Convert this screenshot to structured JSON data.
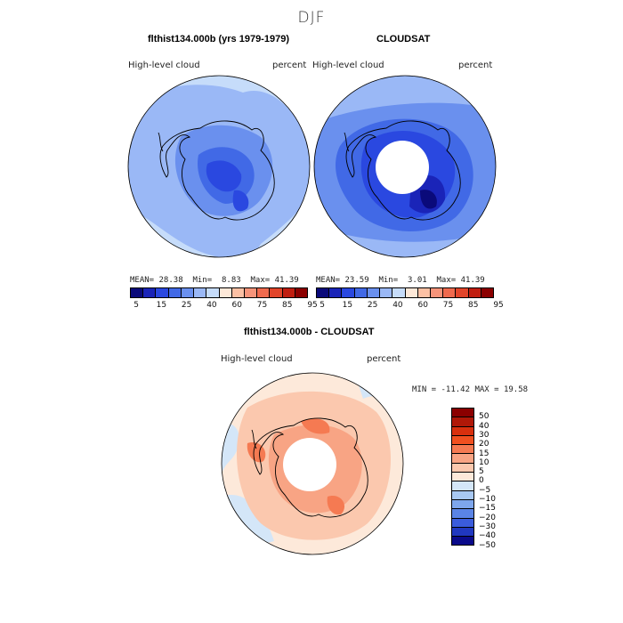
{
  "page": {
    "season": "DJF"
  },
  "panels": [
    {
      "title": "flthist134.000b (yrs 1979-1979)",
      "variable": "High-level cloud",
      "units": "percent",
      "stats": {
        "mean_label": "MEAN=",
        "mean": "28.38",
        "min_label": "Min=",
        "min": "8.83",
        "max_label": "Max=",
        "max": "41.39"
      }
    },
    {
      "title": "CLOUDSAT",
      "variable": "High-level cloud",
      "units": "percent",
      "stats": {
        "mean_label": "MEAN=",
        "mean": "23.59",
        "min_label": "Min=",
        "min": "3.01",
        "max_label": "Max=",
        "max": "41.39"
      }
    },
    {
      "title": "flthist134.000b - CLOUDSAT",
      "variable": "High-level cloud",
      "units": "percent",
      "stats_text": "MIN = -11.42  MAX =  19.58"
    }
  ],
  "colorbar_abs": {
    "colors": [
      "#0a0a7a",
      "#1a24b8",
      "#2a48e0",
      "#4169e6",
      "#6a90ee",
      "#9ab8f6",
      "#c6dcfa",
      "#fde8d8",
      "#fbc0a4",
      "#f6947a",
      "#ef6a4e",
      "#e2452a",
      "#c01e10",
      "#8b0000"
    ],
    "ticks": [
      "5",
      "15",
      "25",
      "40",
      "60",
      "75",
      "85",
      "95"
    ]
  },
  "colorbar_diff": {
    "colors": [
      "#8b0000",
      "#b01808",
      "#d8300e",
      "#f05020",
      "#f57a52",
      "#f8a484",
      "#fbc8ae",
      "#fde9da",
      "#d4e6f8",
      "#a8c8f2",
      "#7ea6ec",
      "#5a84e6",
      "#3a5cdc",
      "#2038c0",
      "#0a0a8a"
    ],
    "ticks": [
      "50",
      "40",
      "30",
      "20",
      "15",
      "10",
      "5",
      "0",
      "−5",
      "−10",
      "−15",
      "−20",
      "−30",
      "−40",
      "−50"
    ]
  }
}
